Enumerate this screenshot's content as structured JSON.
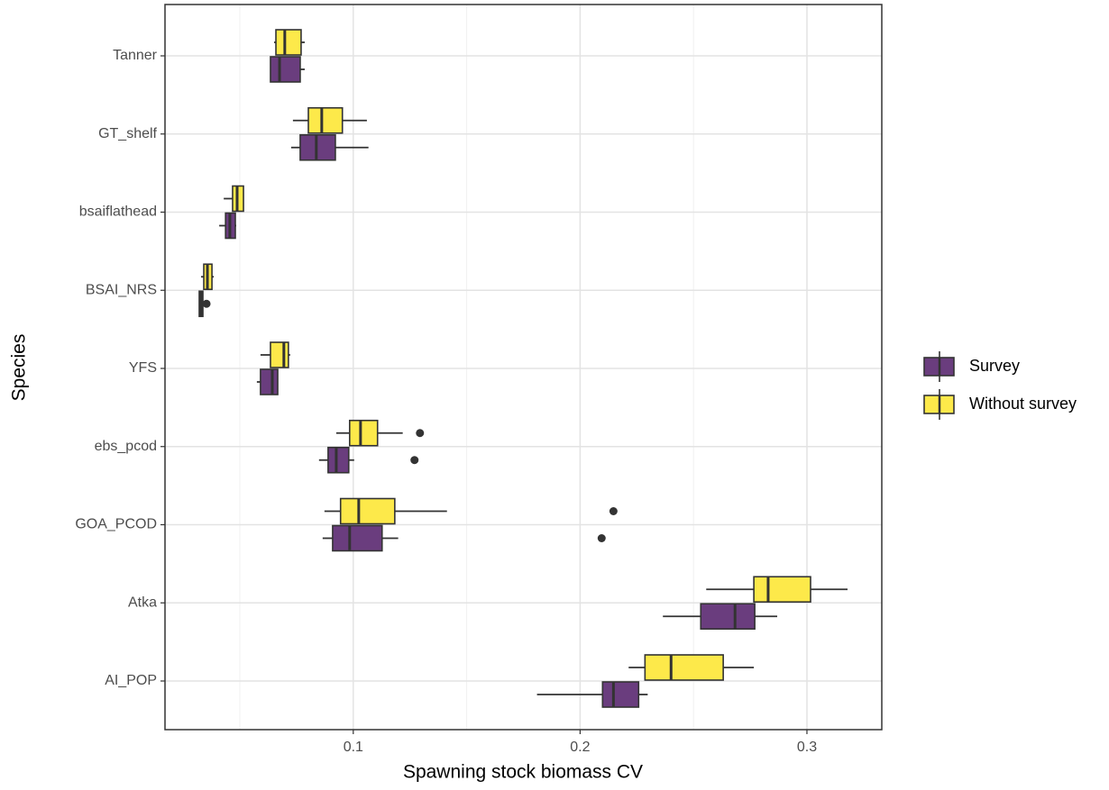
{
  "chart_data": {
    "type": "boxplot",
    "orientation": "horizontal",
    "x_label": "Spawning stock biomass CV",
    "y_label": "Species",
    "categories": [
      "Tanner",
      "GT_shelf",
      "bsaiflathead",
      "BSAI_NRS",
      "YFS",
      "ebs_pcod",
      "GOA_PCOD",
      "Atka",
      "AI_POP"
    ],
    "xlim": [
      0.017,
      0.333
    ],
    "xticks": [
      0.1,
      0.2,
      0.3
    ],
    "xminor": [
      0.05,
      0.15,
      0.25
    ],
    "grid": true,
    "legend": "right",
    "series": [
      {
        "name": "Survey",
        "color": "#6a3d7e",
        "boxes": [
          {
            "whislo": 0.0635,
            "q1": 0.0635,
            "med": 0.0675,
            "q3": 0.0766,
            "whishi": 0.0786,
            "outliers": []
          },
          {
            "whislo": 0.0726,
            "q1": 0.0766,
            "med": 0.0837,
            "q3": 0.0921,
            "whishi": 0.1067,
            "outliers": []
          },
          {
            "whislo": 0.0409,
            "q1": 0.0437,
            "med": 0.0456,
            "q3": 0.048,
            "whishi": 0.0484,
            "outliers": []
          },
          {
            "whislo": 0.0321,
            "q1": 0.0321,
            "med": 0.0329,
            "q3": 0.0337,
            "whishi": 0.0337,
            "outliers": [
              0.0353
            ]
          },
          {
            "whislo": 0.0575,
            "q1": 0.0591,
            "med": 0.0643,
            "q3": 0.0667,
            "whishi": 0.0667,
            "outliers": []
          },
          {
            "whislo": 0.0849,
            "q1": 0.0889,
            "med": 0.0925,
            "q3": 0.098,
            "whishi": 0.1004,
            "outliers": [
              0.127
            ]
          },
          {
            "whislo": 0.0865,
            "q1": 0.0909,
            "med": 0.0984,
            "q3": 0.1127,
            "whishi": 0.1198,
            "outliers": [
              0.2095
            ]
          },
          {
            "whislo": 0.2365,
            "q1": 0.2532,
            "med": 0.2683,
            "q3": 0.277,
            "whishi": 0.2869,
            "outliers": []
          },
          {
            "whislo": 0.181,
            "q1": 0.2099,
            "med": 0.2147,
            "q3": 0.2258,
            "whishi": 0.2298,
            "outliers": []
          }
        ]
      },
      {
        "name": "Without survey",
        "color": "#fde94a",
        "boxes": [
          {
            "whislo": 0.0651,
            "q1": 0.0659,
            "med": 0.0698,
            "q3": 0.077,
            "whishi": 0.0786,
            "outliers": []
          },
          {
            "whislo": 0.0734,
            "q1": 0.0802,
            "med": 0.0861,
            "q3": 0.0952,
            "whishi": 0.106,
            "outliers": []
          },
          {
            "whislo": 0.0429,
            "q1": 0.0468,
            "med": 0.0488,
            "q3": 0.0516,
            "whishi": 0.0516,
            "outliers": []
          },
          {
            "whislo": 0.0329,
            "q1": 0.0341,
            "med": 0.0357,
            "q3": 0.0377,
            "whishi": 0.0385,
            "outliers": []
          },
          {
            "whislo": 0.0591,
            "q1": 0.0635,
            "med": 0.0694,
            "q3": 0.0714,
            "whishi": 0.0722,
            "outliers": []
          },
          {
            "whislo": 0.0925,
            "q1": 0.0984,
            "med": 0.1032,
            "q3": 0.1107,
            "whishi": 0.1218,
            "outliers": [
              0.1294
            ]
          },
          {
            "whislo": 0.0873,
            "q1": 0.0944,
            "med": 0.1024,
            "q3": 0.1183,
            "whishi": 0.1413,
            "outliers": [
              0.2147
            ]
          },
          {
            "whislo": 0.2556,
            "q1": 0.2766,
            "med": 0.2829,
            "q3": 0.3016,
            "whishi": 0.3179,
            "outliers": []
          },
          {
            "whislo": 0.2214,
            "q1": 0.2286,
            "med": 0.2401,
            "q3": 0.2631,
            "whishi": 0.2766,
            "outliers": []
          }
        ]
      }
    ]
  }
}
